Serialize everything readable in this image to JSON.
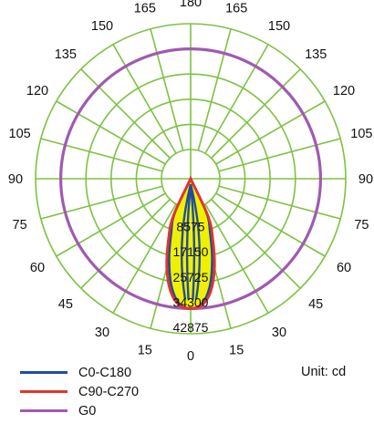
{
  "chart_data": {
    "type": "polar",
    "title": "",
    "angle_ticks": [
      0,
      15,
      30,
      45,
      60,
      75,
      90,
      105,
      120,
      135,
      150,
      165,
      180
    ],
    "radial_ticks": [
      8575,
      17150,
      25725,
      34300,
      42875
    ],
    "rmax": 42875,
    "unit": "Unit: cd",
    "series": [
      {
        "name": "C0-C180",
        "color": "#1f4e9c",
        "angles": [
          0,
          5,
          10,
          15,
          20,
          25,
          30
        ],
        "values": [
          34300,
          33000,
          27500,
          18500,
          9500,
          3000,
          0
        ]
      },
      {
        "name": "C90-C270",
        "color": "#e8322d",
        "angles": [
          0,
          5,
          10,
          15,
          20,
          25,
          30
        ],
        "values": [
          34300,
          33400,
          29200,
          21500,
          12200,
          4200,
          0
        ]
      },
      {
        "name": "G0",
        "color": "#a05ab0",
        "angles": [
          0,
          90,
          180
        ],
        "values": [
          34300,
          34300,
          34300
        ]
      }
    ],
    "fill_color": "#f0f000",
    "grid_color": "#7cc242"
  }
}
